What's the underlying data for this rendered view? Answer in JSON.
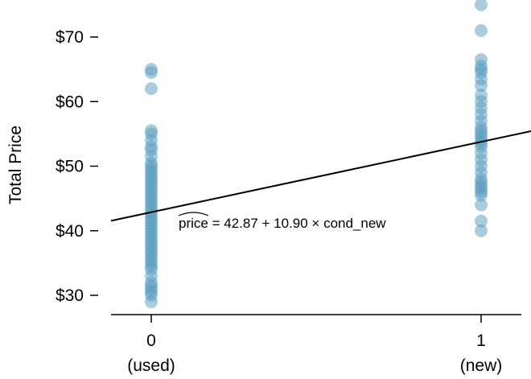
{
  "chart_data": {
    "type": "scatter",
    "title": "",
    "ylabel": "Total Price",
    "xlabel": "",
    "xlim": [
      -0.12,
      1.05
    ],
    "ylim": [
      27.5,
      76
    ],
    "y_ticks": [
      {
        "value": 30,
        "label": "$30"
      },
      {
        "value": 40,
        "label": "$40"
      },
      {
        "value": 50,
        "label": "$50"
      },
      {
        "value": 60,
        "label": "$60"
      },
      {
        "value": 70,
        "label": "$70"
      }
    ],
    "x_ticks": [
      {
        "value": 0,
        "label": "0",
        "sublabel": "(used)"
      },
      {
        "value": 1,
        "label": "1",
        "sublabel": "(new)"
      }
    ],
    "point_color": "#569BBD",
    "line_color": "#000000",
    "grid": false,
    "regression": {
      "intercept": 42.87,
      "slope": 10.9,
      "equation": "price = 42.87 + 10.90 × cond_new",
      "hat_word": "price",
      "rest": " = 42.87 + 10.90 × cond_new"
    },
    "series": [
      {
        "x": 0,
        "values": [
          65,
          64.5,
          62,
          55.5,
          55,
          54,
          53,
          52.5,
          51.5,
          50.5,
          50,
          49.5,
          49,
          48.5,
          48,
          47.5,
          47,
          46.5,
          46,
          45.5,
          45,
          44.5,
          44,
          43.5,
          43,
          42.5,
          42,
          41.5,
          41,
          40.5,
          40,
          39.5,
          39,
          38.5,
          38,
          37.5,
          37,
          36.5,
          36,
          35.5,
          35,
          34.5,
          34,
          33,
          32,
          31.5,
          31,
          30.5,
          30,
          29
        ]
      },
      {
        "x": 1,
        "values": [
          75,
          71,
          66.5,
          65.5,
          65,
          64.5,
          63.5,
          62.5,
          61,
          60,
          59,
          58,
          57,
          56,
          55.5,
          55,
          54.5,
          54,
          53.5,
          53,
          52,
          51,
          50,
          49,
          48,
          47.5,
          47,
          46.5,
          46,
          45.5,
          44,
          41.5,
          40
        ]
      }
    ]
  }
}
